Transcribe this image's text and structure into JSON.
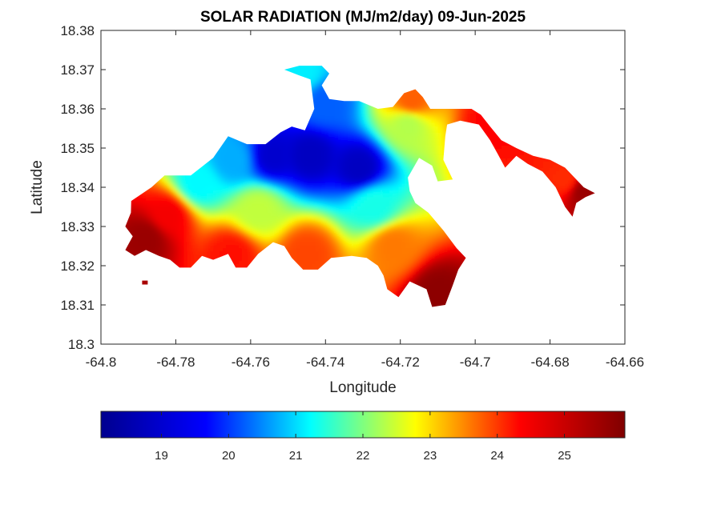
{
  "chart_data": {
    "type": "heatmap",
    "title": "SOLAR RADIATION (MJ/m2/day) 09-Jun-2025",
    "xlabel": "Longitude",
    "ylabel": "Latitude",
    "xlim": [
      -64.8,
      -64.66
    ],
    "ylim": [
      18.3,
      18.38
    ],
    "xticks": [
      -64.8,
      -64.78,
      -64.76,
      -64.74,
      -64.72,
      -64.7,
      -64.68,
      -64.66
    ],
    "xtick_labels": [
      "-64.8",
      "-64.78",
      "-64.76",
      "-64.74",
      "-64.72",
      "-64.7",
      "-64.68",
      "-64.66"
    ],
    "yticks": [
      18.3,
      18.31,
      18.32,
      18.33,
      18.34,
      18.35,
      18.36,
      18.37,
      18.38
    ],
    "ytick_labels": [
      "18.3",
      "18.31",
      "18.32",
      "18.33",
      "18.34",
      "18.35",
      "18.36",
      "18.37",
      "18.38"
    ],
    "colormap": "jet",
    "colorbar": {
      "orientation": "horizontal",
      "placement": "bottom",
      "range": [
        18.1,
        25.9
      ],
      "ticks": [
        19,
        20,
        21,
        22,
        23,
        24,
        25
      ],
      "tick_labels": [
        "19",
        "20",
        "21",
        "22",
        "23",
        "24",
        "25"
      ],
      "stops": [
        "#00008f",
        "#0000ff",
        "#00ffff",
        "#ffff00",
        "#ff0000",
        "#800000"
      ]
    },
    "grid": false,
    "island_outline": [
      [
        -64.7919,
        18.3365
      ],
      [
        -64.7865,
        18.34
      ],
      [
        -64.783,
        18.343
      ],
      [
        -64.776,
        18.343
      ],
      [
        -64.77,
        18.3475
      ],
      [
        -64.766,
        18.353
      ],
      [
        -64.761,
        18.351
      ],
      [
        -64.756,
        18.351
      ],
      [
        -64.752,
        18.354
      ],
      [
        -64.749,
        18.3555
      ],
      [
        -64.7455,
        18.3545
      ],
      [
        -64.743,
        18.36
      ],
      [
        -64.744,
        18.3675
      ],
      [
        -64.747,
        18.3685
      ],
      [
        -64.751,
        18.37
      ],
      [
        -64.747,
        18.371
      ],
      [
        -64.741,
        18.371
      ],
      [
        -64.739,
        18.369
      ],
      [
        -64.741,
        18.366
      ],
      [
        -64.739,
        18.3625
      ],
      [
        -64.735,
        18.362
      ],
      [
        -64.731,
        18.362
      ],
      [
        -64.726,
        18.36
      ],
      [
        -64.722,
        18.3605
      ],
      [
        -64.719,
        18.364
      ],
      [
        -64.716,
        18.365
      ],
      [
        -64.714,
        18.363
      ],
      [
        -64.712,
        18.36
      ],
      [
        -64.707,
        18.36
      ],
      [
        -64.701,
        18.36
      ],
      [
        -64.6985,
        18.3585
      ],
      [
        -64.696,
        18.3555
      ],
      [
        -64.693,
        18.352
      ],
      [
        -64.689,
        18.35
      ],
      [
        -64.6845,
        18.348
      ],
      [
        -64.68,
        18.347
      ],
      [
        -64.676,
        18.345
      ],
      [
        -64.6725,
        18.3415
      ],
      [
        -64.671,
        18.34
      ],
      [
        -64.668,
        18.3385
      ],
      [
        -64.6705,
        18.3375
      ],
      [
        -64.673,
        18.336
      ],
      [
        -64.674,
        18.3325
      ],
      [
        -64.676,
        18.335
      ],
      [
        -64.6785,
        18.34
      ],
      [
        -64.682,
        18.344
      ],
      [
        -64.686,
        18.346
      ],
      [
        -64.689,
        18.348
      ],
      [
        -64.692,
        18.345
      ],
      [
        -64.694,
        18.3485
      ],
      [
        -64.696,
        18.352
      ],
      [
        -64.699,
        18.356
      ],
      [
        -64.704,
        18.357
      ],
      [
        -64.7075,
        18.356
      ],
      [
        -64.708,
        18.353
      ],
      [
        -64.7085,
        18.347
      ],
      [
        -64.706,
        18.342
      ],
      [
        -64.71,
        18.3415
      ],
      [
        -64.7115,
        18.3455
      ],
      [
        -64.715,
        18.3475
      ],
      [
        -64.718,
        18.3425
      ],
      [
        -64.7175,
        18.339
      ],
      [
        -64.716,
        18.336
      ],
      [
        -64.7125,
        18.3335
      ],
      [
        -64.7085,
        18.329
      ],
      [
        -64.705,
        18.3245
      ],
      [
        -64.7025,
        18.322
      ],
      [
        -64.7045,
        18.319
      ],
      [
        -64.706,
        18.315
      ],
      [
        -64.708,
        18.31
      ],
      [
        -64.7115,
        18.3095
      ],
      [
        -64.713,
        18.314
      ],
      [
        -64.7175,
        18.316
      ],
      [
        -64.7205,
        18.312
      ],
      [
        -64.7235,
        18.314
      ],
      [
        -64.7245,
        18.3175
      ],
      [
        -64.726,
        18.32
      ],
      [
        -64.729,
        18.322
      ],
      [
        -64.733,
        18.3225
      ],
      [
        -64.7385,
        18.322
      ],
      [
        -64.742,
        18.319
      ],
      [
        -64.746,
        18.319
      ],
      [
        -64.749,
        18.322
      ],
      [
        -64.751,
        18.325
      ],
      [
        -64.754,
        18.326
      ],
      [
        -64.758,
        18.323
      ],
      [
        -64.761,
        18.3195
      ],
      [
        -64.764,
        18.3195
      ],
      [
        -64.766,
        18.323
      ],
      [
        -64.77,
        18.3215
      ],
      [
        -64.773,
        18.3225
      ],
      [
        -64.776,
        18.3195
      ],
      [
        -64.779,
        18.3195
      ],
      [
        -64.7815,
        18.3215
      ],
      [
        -64.7845,
        18.3225
      ],
      [
        -64.788,
        18.324
      ],
      [
        -64.791,
        18.3225
      ],
      [
        -64.7935,
        18.324
      ],
      [
        -64.7915,
        18.3275
      ],
      [
        -64.7935,
        18.33
      ],
      [
        -64.792,
        18.3335
      ]
    ],
    "islets": [
      [
        [
          -64.789,
          18.3162
        ],
        [
          -64.7875,
          18.3162
        ],
        [
          -64.7875,
          18.3152
        ],
        [
          -64.789,
          18.3152
        ]
      ]
    ],
    "surface_anchors": [
      {
        "lon": -64.744,
        "lat": 18.348,
        "value": 18.6
      },
      {
        "lon": -64.731,
        "lat": 18.345,
        "value": 18.6
      },
      {
        "lon": -64.754,
        "lat": 18.348,
        "value": 18.7
      },
      {
        "lon": -64.74,
        "lat": 18.362,
        "value": 19.8
      },
      {
        "lon": -64.746,
        "lat": 18.369,
        "value": 20.9
      },
      {
        "lon": -64.765,
        "lat": 18.347,
        "value": 20.4
      },
      {
        "lon": -64.774,
        "lat": 18.341,
        "value": 21.0
      },
      {
        "lon": -64.727,
        "lat": 18.335,
        "value": 21.2
      },
      {
        "lon": -64.718,
        "lat": 18.356,
        "value": 22.4
      },
      {
        "lon": -64.758,
        "lat": 18.334,
        "value": 22.5
      },
      {
        "lon": -64.717,
        "lat": 18.362,
        "value": 24.2
      },
      {
        "lon": -64.722,
        "lat": 18.325,
        "value": 24.0
      },
      {
        "lon": -64.745,
        "lat": 18.323,
        "value": 24.4
      },
      {
        "lon": -64.765,
        "lat": 18.323,
        "value": 24.8
      },
      {
        "lon": -64.782,
        "lat": 18.333,
        "value": 25.0
      },
      {
        "lon": -64.788,
        "lat": 18.327,
        "value": 25.7
      },
      {
        "lon": -64.695,
        "lat": 18.356,
        "value": 24.9
      },
      {
        "lon": -64.676,
        "lat": 18.342,
        "value": 24.6
      },
      {
        "lon": -64.671,
        "lat": 18.339,
        "value": 25.7
      },
      {
        "lon": -64.71,
        "lat": 18.313,
        "value": 25.8
      }
    ]
  }
}
